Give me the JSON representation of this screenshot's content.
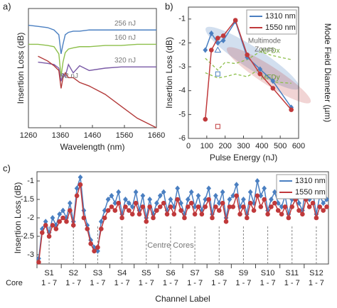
{
  "chart_data": [
    {
      "type": "line",
      "panel_label": "a)",
      "x_label": "Wavelength (nm)",
      "y_label": "Insertion Loss (dB)",
      "x": [
        1260,
        1290,
        1320,
        1340,
        1355,
        1362,
        1368,
        1375,
        1385,
        1400,
        1420,
        1450,
        1500,
        1550,
        1600,
        1660
      ],
      "xlim": [
        1260,
        1660
      ],
      "xticks": [
        1260,
        1360,
        1460,
        1560,
        1660
      ],
      "ylim": [
        0,
        10
      ],
      "series": [
        {
          "name": "256 nJ",
          "color": "#4a7fc1",
          "values": [
            8.6,
            8.5,
            8.4,
            8.2,
            7.8,
            6.2,
            7.0,
            7.8,
            8.0,
            8.1,
            8.1,
            8.2,
            8.2,
            8.2,
            8.2,
            8.2
          ]
        },
        {
          "name": "160 nJ",
          "color": "#8dbf4b",
          "values": [
            7.0,
            7.0,
            6.9,
            6.8,
            6.2,
            4.3,
            5.5,
            6.3,
            6.6,
            6.7,
            6.8,
            6.8,
            6.9,
            6.9,
            7.0,
            7.0
          ]
        },
        {
          "name": "320 nJ",
          "color": "#7a5aa6",
          "values": [
            null,
            5.5,
            5.4,
            5.3,
            5.0,
            3.9,
            4.5,
            4.3,
            5.3,
            4.6,
            5.2,
            4.8,
            5.0,
            5.1,
            5.1,
            5.1
          ]
        },
        {
          "name": "92 nJ",
          "color": "#b33a3a",
          "values": [
            null,
            6.0,
            5.6,
            5.2,
            4.8,
            3.3,
            4.2,
            4.6,
            4.2,
            4.2,
            3.8,
            3.5,
            2.8,
            1.8,
            0.8,
            0.0
          ]
        }
      ]
    },
    {
      "type": "line",
      "panel_label": "b)",
      "x_label": "Pulse Energy (nJ)",
      "y_label": "Insertion Loss (dB)",
      "y2_label": "Mode Field Diameter (µm)",
      "x": [
        92,
        125,
        160,
        190,
        256,
        320,
        390,
        460,
        560
      ],
      "xlim": [
        0,
        600
      ],
      "xticks": [
        0,
        100,
        200,
        300,
        400,
        500,
        600
      ],
      "ylim": [
        -6,
        -0.5
      ],
      "yticks": [
        -1,
        -2,
        -3,
        -4,
        -5,
        -6
      ],
      "y2lim": [
        0,
        10
      ],
      "legend": "top-right",
      "annotations": [
        "Multimode",
        "Zones"
      ],
      "series": [
        {
          "name": "1310 nm",
          "color": "#4a7fc1",
          "marker": "diamond",
          "values": [
            -2.3,
            -1.6,
            -2.0,
            -1.9,
            -1.1,
            -2.6,
            -3.1,
            -3.6,
            -4.7
          ]
        },
        {
          "name": "1550 nm",
          "color": "#c0393b",
          "marker": "circle",
          "values": [
            -5.2,
            -2.3,
            -1.8,
            -1.7,
            -1.05,
            -2.5,
            -3.3,
            -3.9,
            -4.8
          ]
        }
      ],
      "mfd_x": [
        92,
        160,
        200,
        256,
        320,
        390,
        460,
        560
      ],
      "mfd_series": [
        {
          "name": "MFDx",
          "color": "#8dbf4b",
          "axis": "y2",
          "values": [
            6.1,
            5.2,
            5.8,
            5.7,
            6.0,
            6.6,
            6.3,
            6.0
          ]
        },
        {
          "name": "MFDy",
          "color": "#8dbf4b",
          "axis": "y2",
          "values": [
            5.0,
            4.6,
            4.7,
            4.9,
            4.7,
            5.3,
            4.3,
            4.2
          ]
        }
      ],
      "open_markers": [
        {
          "x": 160,
          "y": -2.3,
          "shape": "triangle",
          "color": "#4a7fc1"
        },
        {
          "x": 160,
          "y": -3.3,
          "shape": "square",
          "color": "#4a7fc1"
        },
        {
          "x": 160,
          "y": -5.5,
          "shape": "square",
          "color": "#c0393b"
        }
      ]
    },
    {
      "type": "line",
      "panel_label": "c)",
      "x_label": "Channel Label",
      "y_label": "Insertion Loss (dB)",
      "ylim": [
        -3.25,
        -0.75
      ],
      "yticks": [
        -1,
        -1.5,
        -2,
        -2.5,
        -3
      ],
      "legend": "top-right",
      "core_title": "Core",
      "annotation": "Centre Cores",
      "group_labels": [
        "S1",
        "S2",
        "S3",
        "S4",
        "S5",
        "S6",
        "S7",
        "S8",
        "S9",
        "S10",
        "S11",
        "S12"
      ],
      "core_labels": [
        "1 - 7",
        "1 - 7",
        "1 - 7",
        "1 - 7",
        "1 - 7",
        "1 - 7",
        "1 - 7",
        "1 - 7",
        "1 - 7",
        "1 - 7",
        "1 - 7",
        "1 - 7"
      ],
      "categories": [
        null,
        null,
        null,
        null,
        null,
        null,
        null,
        null,
        null,
        null,
        null,
        null,
        null,
        null,
        null,
        null,
        null,
        null,
        null,
        null,
        null,
        null,
        null,
        null,
        null,
        null,
        null,
        null,
        null,
        null,
        null,
        null,
        null,
        null,
        null,
        null,
        null,
        null,
        null,
        null,
        null,
        null,
        null,
        null,
        null,
        null,
        null,
        null,
        null,
        null,
        null,
        null,
        null,
        null,
        null,
        null,
        null,
        null,
        null,
        null,
        null,
        null,
        null,
        null,
        null,
        null,
        null,
        null,
        null,
        null,
        null,
        null,
        null,
        null,
        null,
        null,
        null,
        null,
        null,
        null,
        null,
        null,
        null,
        null
      ],
      "series": [
        {
          "name": "1310 nm",
          "color": "#4a7fc1",
          "marker": "diamond",
          "values": [
            -3.1,
            -2.3,
            -2.1,
            -2.4,
            -2.0,
            -2.2,
            -1.9,
            -1.8,
            -2.0,
            -1.6,
            -2.1,
            -1.2,
            -0.9,
            -1.8,
            -2.2,
            -2.6,
            -2.8,
            -2.9,
            -2.1,
            -1.8,
            -1.5,
            -1.4,
            -1.6,
            -1.3,
            -1.9,
            -1.5,
            -1.6,
            -1.7,
            -1.3,
            -1.8,
            -1.4,
            -2.0,
            -1.5,
            -1.9,
            -1.6,
            -1.4,
            -1.3,
            -1.8,
            -1.5,
            -1.7,
            -1.2,
            -1.6,
            -1.9,
            -1.5,
            -1.3,
            -1.7,
            -1.4,
            -1.8,
            -1.5,
            -1.2,
            -1.9,
            -1.4,
            -1.6,
            -1.3,
            -2.0,
            -1.5,
            -1.4,
            -1.1,
            -1.7,
            -1.5,
            -1.9,
            -1.3,
            -1.6,
            -1.0,
            -1.4,
            -1.2,
            -1.8,
            -1.5,
            -1.3,
            -1.6,
            -1.7,
            -1.4,
            -1.9,
            -1.5,
            -1.2,
            -1.6,
            -1.8,
            -1.1,
            -1.5,
            -1.3,
            -1.9,
            -1.4,
            -1.6,
            -1.5
          ]
        },
        {
          "name": "1550 nm",
          "color": "#c0393b",
          "marker": "circle",
          "values": [
            -3.2,
            -2.4,
            -2.2,
            -2.5,
            -2.2,
            -2.3,
            -2.1,
            -2.0,
            -2.1,
            -1.8,
            -2.2,
            -1.4,
            -1.1,
            -2.0,
            -2.3,
            -2.7,
            -2.9,
            -2.8,
            -2.3,
            -2.0,
            -1.8,
            -1.7,
            -1.8,
            -1.6,
            -2.0,
            -1.7,
            -1.8,
            -1.9,
            -1.6,
            -1.9,
            -1.7,
            -2.1,
            -1.7,
            -2.0,
            -1.8,
            -1.7,
            -1.6,
            -1.9,
            -1.7,
            -1.9,
            -1.5,
            -1.8,
            -2.0,
            -1.7,
            -1.6,
            -1.9,
            -1.7,
            -1.9,
            -1.7,
            -1.5,
            -2.0,
            -1.7,
            -1.8,
            -1.6,
            -2.1,
            -1.7,
            -1.7,
            -1.4,
            -1.9,
            -1.7,
            -2.0,
            -1.6,
            -1.8,
            -1.4,
            -1.7,
            -1.5,
            -1.9,
            -1.7,
            -1.6,
            -1.8,
            -1.9,
            -1.7,
            -2.0,
            -1.7,
            -1.5,
            -1.8,
            -1.9,
            -1.5,
            -1.7,
            -1.6,
            -2.0,
            -1.7,
            -1.8,
            -1.7
          ]
        }
      ]
    }
  ]
}
